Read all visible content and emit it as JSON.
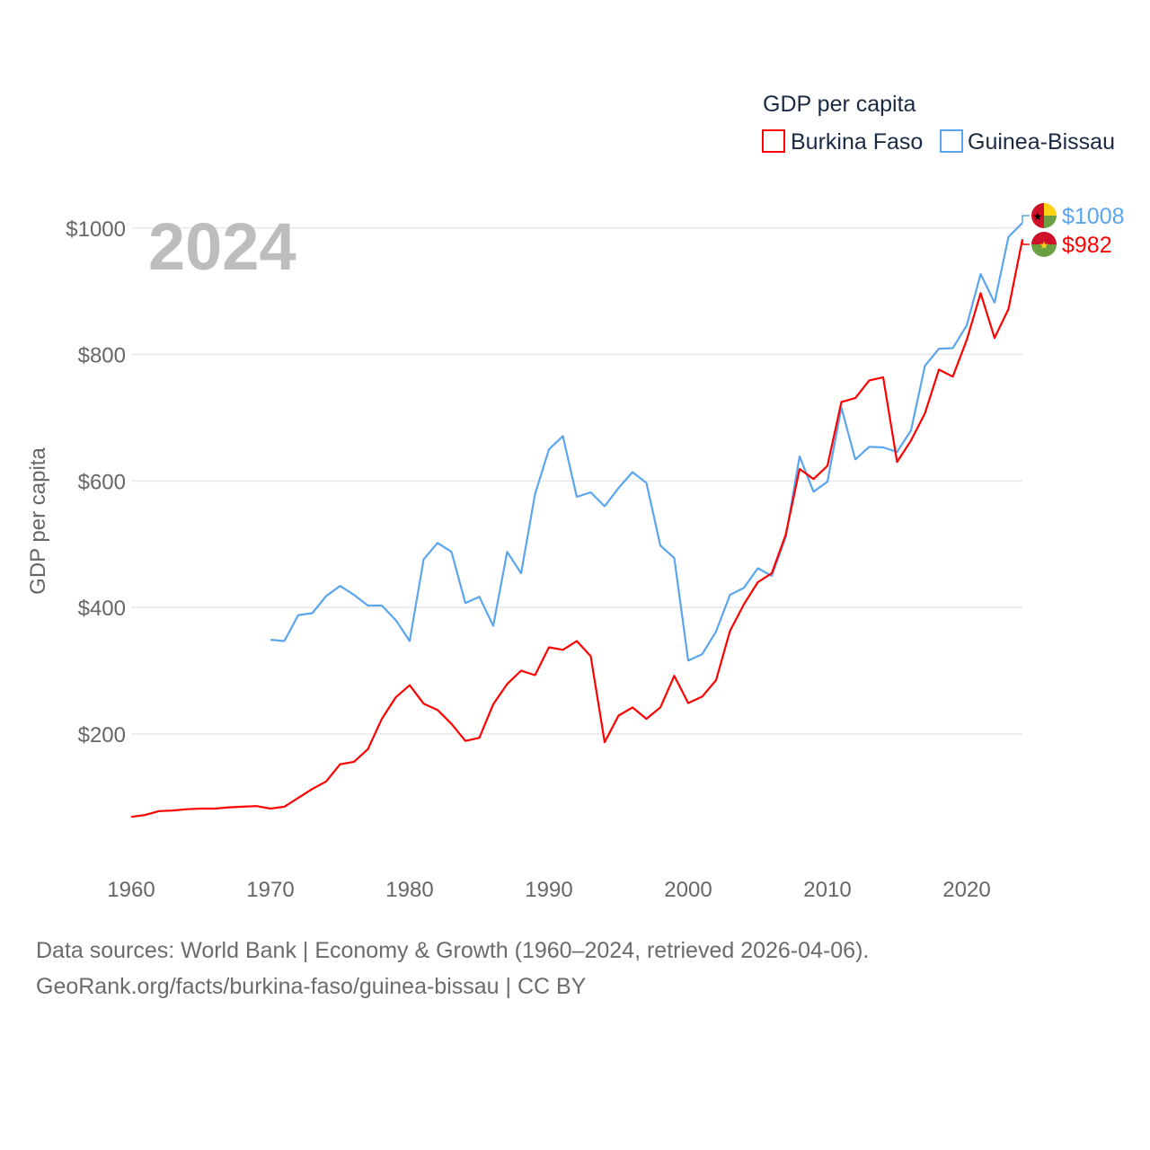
{
  "chart_data": {
    "type": "line",
    "title": "GDP per capita",
    "ylabel": "GDP per capita",
    "xlabel": "",
    "year_label": "2024",
    "xlim": [
      1960,
      2024
    ],
    "ylim": [
      0,
      1000
    ],
    "x_ticks": [
      1960,
      1970,
      1980,
      1990,
      2000,
      2010,
      2020
    ],
    "x_tick_labels": [
      "1960",
      "1970",
      "1980",
      "1990",
      "2000",
      "2010",
      "2020"
    ],
    "y_ticks": [
      200,
      400,
      600,
      800,
      1000
    ],
    "y_tick_labels": [
      "$200",
      "$400",
      "$600",
      "$800",
      "$1000"
    ],
    "grid": true,
    "legend_position": "top-right",
    "series": [
      {
        "name": "Burkina Faso",
        "color": "#ff0000",
        "start_year": 1960,
        "end_label": "$982",
        "values": [
          69,
          72,
          78,
          79,
          81,
          82,
          82,
          84,
          85,
          86,
          82,
          85,
          99,
          113,
          125,
          152,
          156,
          176,
          224,
          258,
          277,
          248,
          238,
          216,
          189,
          194,
          247,
          279,
          300,
          293,
          337,
          333,
          347,
          323,
          187,
          229,
          242,
          224,
          242,
          292,
          249,
          259,
          285,
          363,
          405,
          440,
          454,
          515,
          619,
          603,
          624,
          725,
          731,
          759,
          764,
          630,
          664,
          707,
          776,
          765,
          823,
          897,
          826,
          872,
          982
        ]
      },
      {
        "name": "Guinea-Bissau",
        "color": "#5aa5ee",
        "start_year": 1970,
        "end_label": "$1008",
        "values": [
          349,
          347,
          388,
          391,
          418,
          434,
          420,
          403,
          403,
          380,
          347,
          476,
          502,
          488,
          407,
          417,
          371,
          488,
          454,
          579,
          650,
          671,
          575,
          582,
          560,
          589,
          614,
          597,
          498,
          478,
          316,
          326,
          362,
          420,
          431,
          462,
          450,
          511,
          639,
          583,
          599,
          716,
          634,
          654,
          653,
          646,
          680,
          782,
          809,
          810,
          846,
          927,
          882,
          986,
          1008
        ]
      }
    ]
  },
  "footer": {
    "line1": "Data sources: World Bank | Economy & Growth (1960–2024, retrieved 2026-04-06).",
    "line2": "GeoRank.org/facts/burkina-faso/guinea-bissau | CC BY"
  }
}
